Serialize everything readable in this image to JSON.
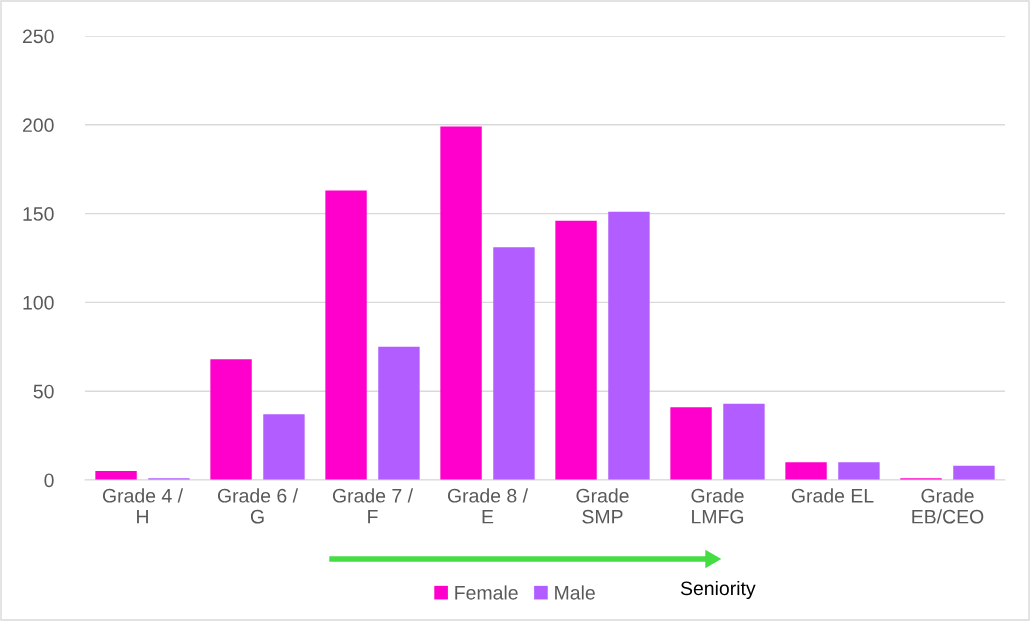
{
  "chart_data": {
    "type": "bar",
    "categories": [
      "Grade 4 /\nH",
      "Grade 6 /\nG",
      "Grade 7 /\nF",
      "Grade 8 /\nE",
      "Grade\nSMP",
      "Grade\nLMFG",
      "Grade EL",
      "Grade\nEB/CEO"
    ],
    "series": [
      {
        "name": "Female",
        "color": "#ff00cc",
        "values": [
          5,
          68,
          163,
          199,
          146,
          41,
          10,
          1
        ]
      },
      {
        "name": "Male",
        "color": "#b25dff",
        "values": [
          1,
          37,
          75,
          131,
          151,
          43,
          10,
          8
        ]
      }
    ],
    "ylim": [
      0,
      250
    ],
    "yticks": [
      0,
      50,
      100,
      150,
      200,
      250
    ],
    "grid": "y",
    "legend": "bottom",
    "annotations": [
      "Seniority"
    ]
  }
}
